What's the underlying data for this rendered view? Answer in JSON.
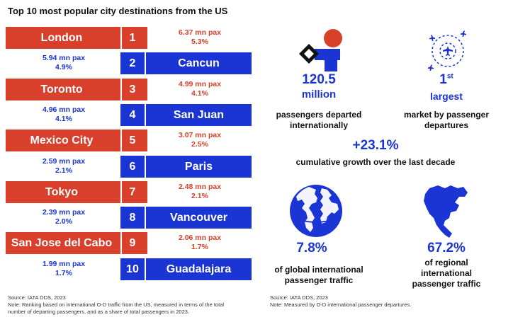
{
  "title": "Top 10 most popular city destinations from the US",
  "chart_data": {
    "type": "bar",
    "title": "Top 10 most popular city destinations from the US",
    "categories": [
      "London",
      "Cancun",
      "Toronto",
      "San Juan",
      "Mexico City",
      "Paris",
      "Tokyo",
      "Vancouver",
      "San Jose del Cabo",
      "Guadalajara"
    ],
    "ranks": [
      "1",
      "2",
      "3",
      "4",
      "5",
      "6",
      "7",
      "8",
      "9",
      "10"
    ],
    "passengers_labels": [
      "6.37 mn pax",
      "5.94 mn pax",
      "4.99 mn pax",
      "4.96 mn pax",
      "3.07 mn pax",
      "2.59 mn pax",
      "2.48 mn pax",
      "2.39 mn pax",
      "2.06 mn pax",
      "1.99 mn pax"
    ],
    "share_labels": [
      "5.3%",
      "4.9%",
      "4.1%",
      "4.1%",
      "2.5%",
      "2.1%",
      "2.1%",
      "2.0%",
      "1.7%",
      "1.7%"
    ],
    "series": [
      {
        "values": [
          6.37,
          5.94,
          4.99,
          4.96,
          3.07,
          2.59,
          2.48,
          2.39,
          2.06,
          1.99
        ]
      },
      {
        "values": [
          5.3,
          4.9,
          4.1,
          4.1,
          2.5,
          2.1,
          2.1,
          2.0,
          1.7,
          1.7
        ]
      }
    ],
    "colors": [
      "#d9402b",
      "#1a35d4"
    ]
  },
  "left_source": "Source: IATA DDS, 2023",
  "left_note_line1": "Note: Ranking based on international O-D traffic from the US, measured in terms of the total",
  "left_note_line2": "number of departing passengers, and as a share of total passengers in 2023.",
  "stats": {
    "passengers_value": "120.5",
    "passengers_unit": "million",
    "passengers_desc_line1": "passengers departed",
    "passengers_desc_line2": "internationally",
    "rank_value": "1",
    "rank_suffix": "st",
    "rank_word": "largest",
    "rank_desc_line1": "market by passenger",
    "rank_desc_line2": "departures",
    "growth_value": "+23.1%",
    "growth_desc": "cumulative growth over the last decade",
    "global_share_value": "7.8%",
    "global_share_desc_line1": "of global international",
    "global_share_desc_line2": "passenger traffic",
    "regional_share_value": "67.2%",
    "regional_share_desc_line1": "of regional",
    "regional_share_desc_line2": "international",
    "regional_share_desc_line3": "passenger traffic"
  },
  "right_source": "Source: IATA DDS, 2023",
  "right_note": "Note: Measured by O-D international passenger departures.",
  "icons": [
    "logo-icon",
    "flight-network-icon",
    "globe-icon",
    "north-america-map-icon"
  ]
}
